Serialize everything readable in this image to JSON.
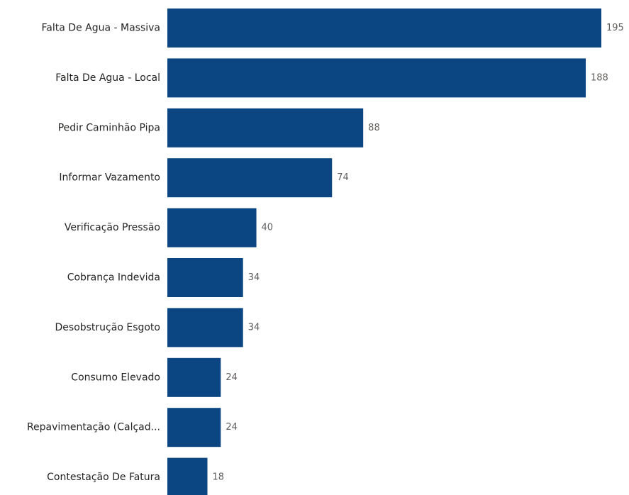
{
  "chart_data": {
    "type": "bar",
    "orientation": "horizontal",
    "title": "",
    "xlabel": "",
    "ylabel": "",
    "categories": [
      "Falta De Agua - Massiva",
      "Falta De Agua - Local",
      "Pedir Caminhão Pipa",
      "Informar Vazamento",
      "Verificação Pressão",
      "Cobrança Indevida",
      "Desobstrução Esgoto",
      "Consumo Elevado",
      "Repavimentação (Calçad...",
      "Contestação De Fatura"
    ],
    "values": [
      195,
      188,
      88,
      74,
      40,
      34,
      34,
      24,
      24,
      18
    ],
    "xlim": [
      0,
      195
    ],
    "bar_color": "#0b4582",
    "grid": false,
    "legend": "none",
    "data_labels": true
  }
}
